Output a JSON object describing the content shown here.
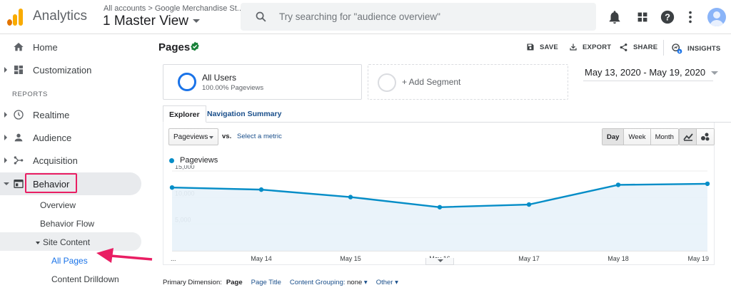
{
  "colors": {
    "accent": "#1a73e8",
    "line": "#058dc7",
    "highlight": "#e91e63",
    "logo": [
      "#f9ab00",
      "#e37400",
      "#e8710a"
    ]
  },
  "header": {
    "app_name": "Analytics",
    "account_path": "All accounts > Google Merchandise St...",
    "view_name": "1 Master View",
    "search_placeholder": "Try searching for \"audience overview\"",
    "icons": [
      "notifications-icon",
      "apps-grid-icon",
      "help-icon",
      "more-vert-icon",
      "account-avatar-icon"
    ]
  },
  "sidebar": {
    "top_items": [
      {
        "label": "Home",
        "icon": "home-icon"
      },
      {
        "label": "Customization",
        "icon": "dashboard-icon"
      }
    ],
    "section_label": "REPORTS",
    "report_items": [
      {
        "label": "Realtime",
        "icon": "clock-icon"
      },
      {
        "label": "Audience",
        "icon": "person-icon"
      },
      {
        "label": "Acquisition",
        "icon": "acquisition-icon"
      },
      {
        "label": "Behavior",
        "icon": "behavior-icon"
      }
    ],
    "behavior_children": [
      "Overview",
      "Behavior Flow",
      "Site Content"
    ],
    "site_content_children": [
      "All Pages",
      "Content Drilldown"
    ]
  },
  "page": {
    "title": "Pages",
    "actions": {
      "save": "SAVE",
      "export": "EXPORT",
      "share": "SHARE",
      "insights": "INSIGHTS"
    },
    "segment": {
      "name": "All Users",
      "detail": "100.00% Pageviews"
    },
    "add_segment": "+ Add Segment",
    "date_range": "May 13, 2020 - May 19, 2020",
    "tabs": [
      "Explorer",
      "Navigation Summary"
    ],
    "metric_selected": "Pageviews",
    "vs_label": "vs.",
    "select_metric": "Select a metric",
    "granularity": [
      "Day",
      "Week",
      "Month"
    ],
    "granularity_selected": "Day",
    "primary_dimension": {
      "label": "Primary Dimension:",
      "current": "Page",
      "page_title": "Page Title",
      "content_grouping": "Content Grouping:",
      "content_grouping_value": "none",
      "other": "Other"
    }
  },
  "chart_data": {
    "type": "line",
    "series": [
      {
        "name": "Pageviews",
        "values": [
          11900,
          11500,
          10100,
          8200,
          8700,
          12400,
          12600
        ]
      }
    ],
    "x": [
      "...",
      "May 14",
      "May 15",
      "May 16",
      "May 17",
      "May 18",
      "May 19"
    ],
    "y_ticks": [
      "15,000",
      "10,000",
      "5,000"
    ],
    "ylim": [
      0,
      15000
    ],
    "grid": true,
    "legend": "top-left"
  }
}
